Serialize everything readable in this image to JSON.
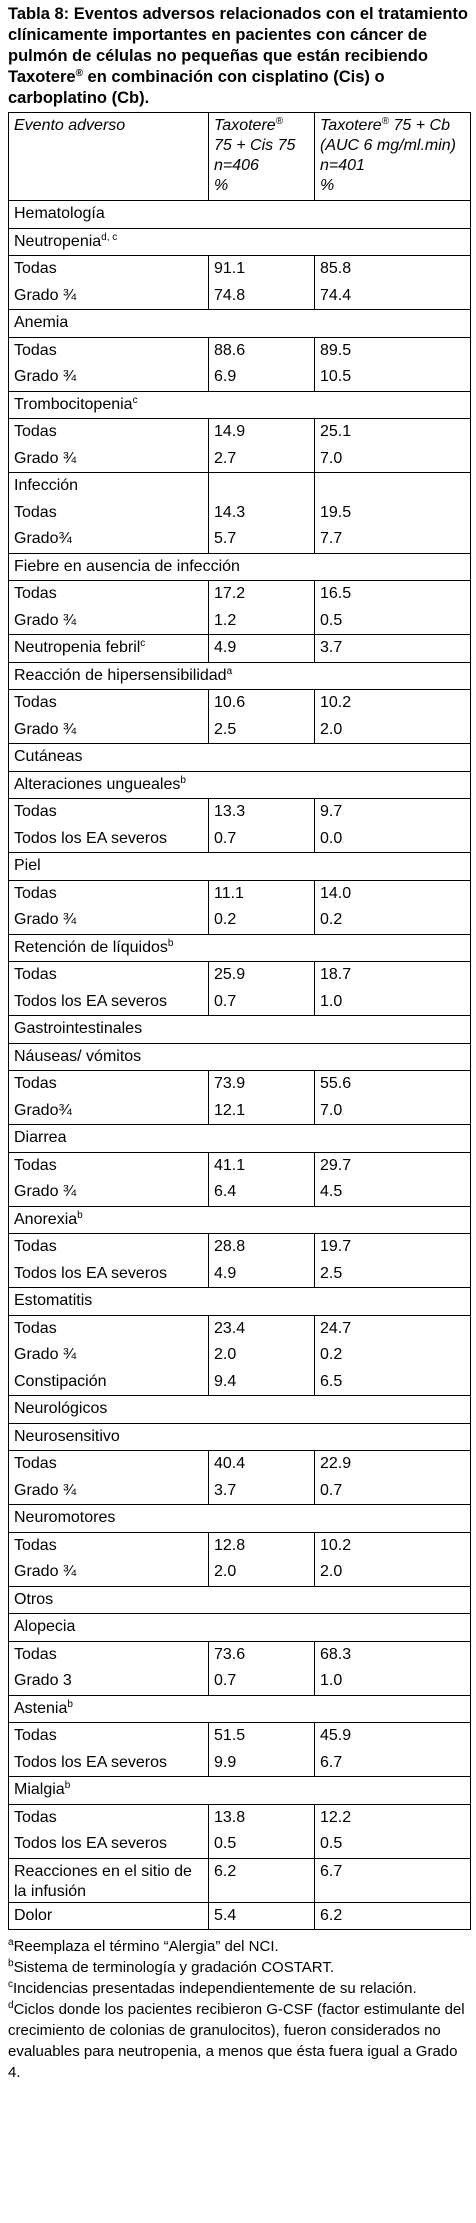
{
  "title": {
    "before": "Tabla 8: Eventos adversos relacionados con el tratamiento clínicamente importantes en pacientes con cáncer de pulmón de células no pequeñas que están recibiendo Taxotere",
    "sup": "®",
    "after": " en combinación con cisplatino (Cis) o carboplatino (Cb)."
  },
  "header": {
    "col1": "Evento adverso",
    "col2": {
      "name": "Taxotere",
      "sup": "®",
      "lines": [
        "75 + Cis 75",
        "n=406",
        "%"
      ]
    },
    "col3": {
      "name": "Taxotere",
      "sup": "®",
      "first": " 75 + Cb",
      "lines": [
        "(AUC 6 mg/ml.min)",
        "n=401",
        "%"
      ]
    }
  },
  "groups": [
    {
      "label": "Hematología"
    },
    {
      "label": "Neutropenia",
      "sup": "d, c"
    },
    {
      "rows": [
        [
          "Todas",
          "91.1",
          "85.8"
        ],
        [
          "Grado ¾",
          "74.8",
          "74.4"
        ]
      ]
    },
    {
      "label": "Anemia"
    },
    {
      "rows": [
        [
          "Todas",
          "88.6",
          "89.5"
        ],
        [
          "Grado ¾",
          "6.9",
          "10.5"
        ]
      ]
    },
    {
      "label": "Trombocitopenia",
      "sup": "c"
    },
    {
      "rows": [
        [
          "Todas",
          "14.9",
          "25.1"
        ],
        [
          "Grado ¾",
          "2.7",
          "7.0"
        ]
      ]
    },
    {
      "rows": [
        [
          "Infección"
        ],
        [
          "Todas",
          "14.3",
          "19.5"
        ],
        [
          "Grado¾",
          "5.7",
          "7.7"
        ]
      ]
    },
    {
      "label": "Fiebre en ausencia de infección"
    },
    {
      "rows": [
        [
          "Todas",
          "17.2",
          "16.5"
        ],
        [
          "Grado ¾",
          "1.2",
          "0.5"
        ]
      ]
    },
    {
      "rows": [
        [
          {
            "text": "Neutropenia febril",
            "sup": "c"
          },
          "4.9",
          "3.7"
        ]
      ]
    },
    {
      "label": "Reacción de hipersensibilidad",
      "sup": "a"
    },
    {
      "rows": [
        [
          "Todas",
          "10.6",
          "10.2"
        ],
        [
          "Grado ¾",
          "2.5",
          "2.0"
        ]
      ]
    },
    {
      "label": "Cutáneas"
    },
    {
      "label": "Alteraciones ungueales",
      "sup": "b"
    },
    {
      "rows": [
        [
          "Todas",
          "13.3",
          "9.7"
        ],
        [
          "Todos los EA severos",
          "0.7",
          "0.0"
        ]
      ]
    },
    {
      "label": "Piel"
    },
    {
      "rows": [
        [
          "Todas",
          "11.1",
          "14.0"
        ],
        [
          "Grado ¾",
          "0.2",
          "0.2"
        ]
      ]
    },
    {
      "label": "Retención de líquidos",
      "sup": "b"
    },
    {
      "rows": [
        [
          "Todas",
          "25.9",
          "18.7"
        ],
        [
          "Todos los EA severos",
          "0.7",
          "1.0"
        ]
      ]
    },
    {
      "label": "Gastrointestinales"
    },
    {
      "label": "Náuseas/ vómitos"
    },
    {
      "rows": [
        [
          "Todas",
          "73.9",
          "55.6"
        ],
        [
          "Grado¾",
          "12.1",
          "7.0"
        ]
      ]
    },
    {
      "label": "Diarrea"
    },
    {
      "rows": [
        [
          "Todas",
          "41.1",
          "29.7"
        ],
        [
          "Grado ¾",
          "6.4",
          "4.5"
        ]
      ]
    },
    {
      "label": "Anorexia",
      "sup": "b"
    },
    {
      "rows": [
        [
          "Todas",
          "28.8",
          "19.7"
        ],
        [
          "Todos los EA severos",
          "4.9",
          "2.5"
        ]
      ]
    },
    {
      "label": "Estomatitis"
    },
    {
      "rows": [
        [
          "Todas",
          "23.4",
          "24.7"
        ],
        [
          "Grado ¾",
          "2.0",
          "0.2"
        ],
        [
          "Constipación",
          "9.4",
          "6.5"
        ]
      ]
    },
    {
      "label": "Neurológicos"
    },
    {
      "label": "Neurosensitivo"
    },
    {
      "rows": [
        [
          "Todas",
          "40.4",
          "22.9"
        ],
        [
          "Grado ¾",
          "3.7",
          "0.7"
        ]
      ]
    },
    {
      "label": "Neuromotores"
    },
    {
      "rows": [
        [
          "Todas",
          "12.8",
          "10.2"
        ],
        [
          "Grado ¾",
          "2.0",
          "2.0"
        ]
      ]
    },
    {
      "label": "Otros"
    },
    {
      "label": "Alopecia"
    },
    {
      "rows": [
        [
          "Todas",
          "73.6",
          "68.3"
        ],
        [
          "Grado 3",
          "0.7",
          "1.0"
        ]
      ]
    },
    {
      "label": "Astenia",
      "sup": "b"
    },
    {
      "rows": [
        [
          "Todas",
          "51.5",
          "45.9"
        ],
        [
          "Todos los EA severos",
          "9.9",
          "6.7"
        ]
      ]
    },
    {
      "label": "Mialgia",
      "sup": "b"
    },
    {
      "rows": [
        [
          "Todas",
          "13.8",
          "12.2"
        ],
        [
          "Todos los EA severos",
          "0.5",
          "0.5"
        ]
      ]
    },
    {
      "rows": [
        [
          "Reacciones en el sitio de la infusión",
          "6.2",
          "6.7"
        ]
      ]
    },
    {
      "rows": [
        [
          "Dolor",
          "5.4",
          "6.2"
        ]
      ]
    }
  ],
  "footnotes": [
    {
      "mark": "a",
      "text": "Reemplaza el término “Alergia” del NCI."
    },
    {
      "mark": "b",
      "text": "Sistema de terminología y gradación COSTART."
    },
    {
      "mark": "c",
      "text": "Incidencias presentadas independientemente de su relación."
    },
    {
      "mark": "d",
      "text": "Ciclos donde los pacientes recibieron G-CSF (factor estimulante del crecimiento de colonias de granulocitos), fueron considerados no evaluables para neutropenia, a menos que ésta fuera igual a Grado 4."
    }
  ]
}
